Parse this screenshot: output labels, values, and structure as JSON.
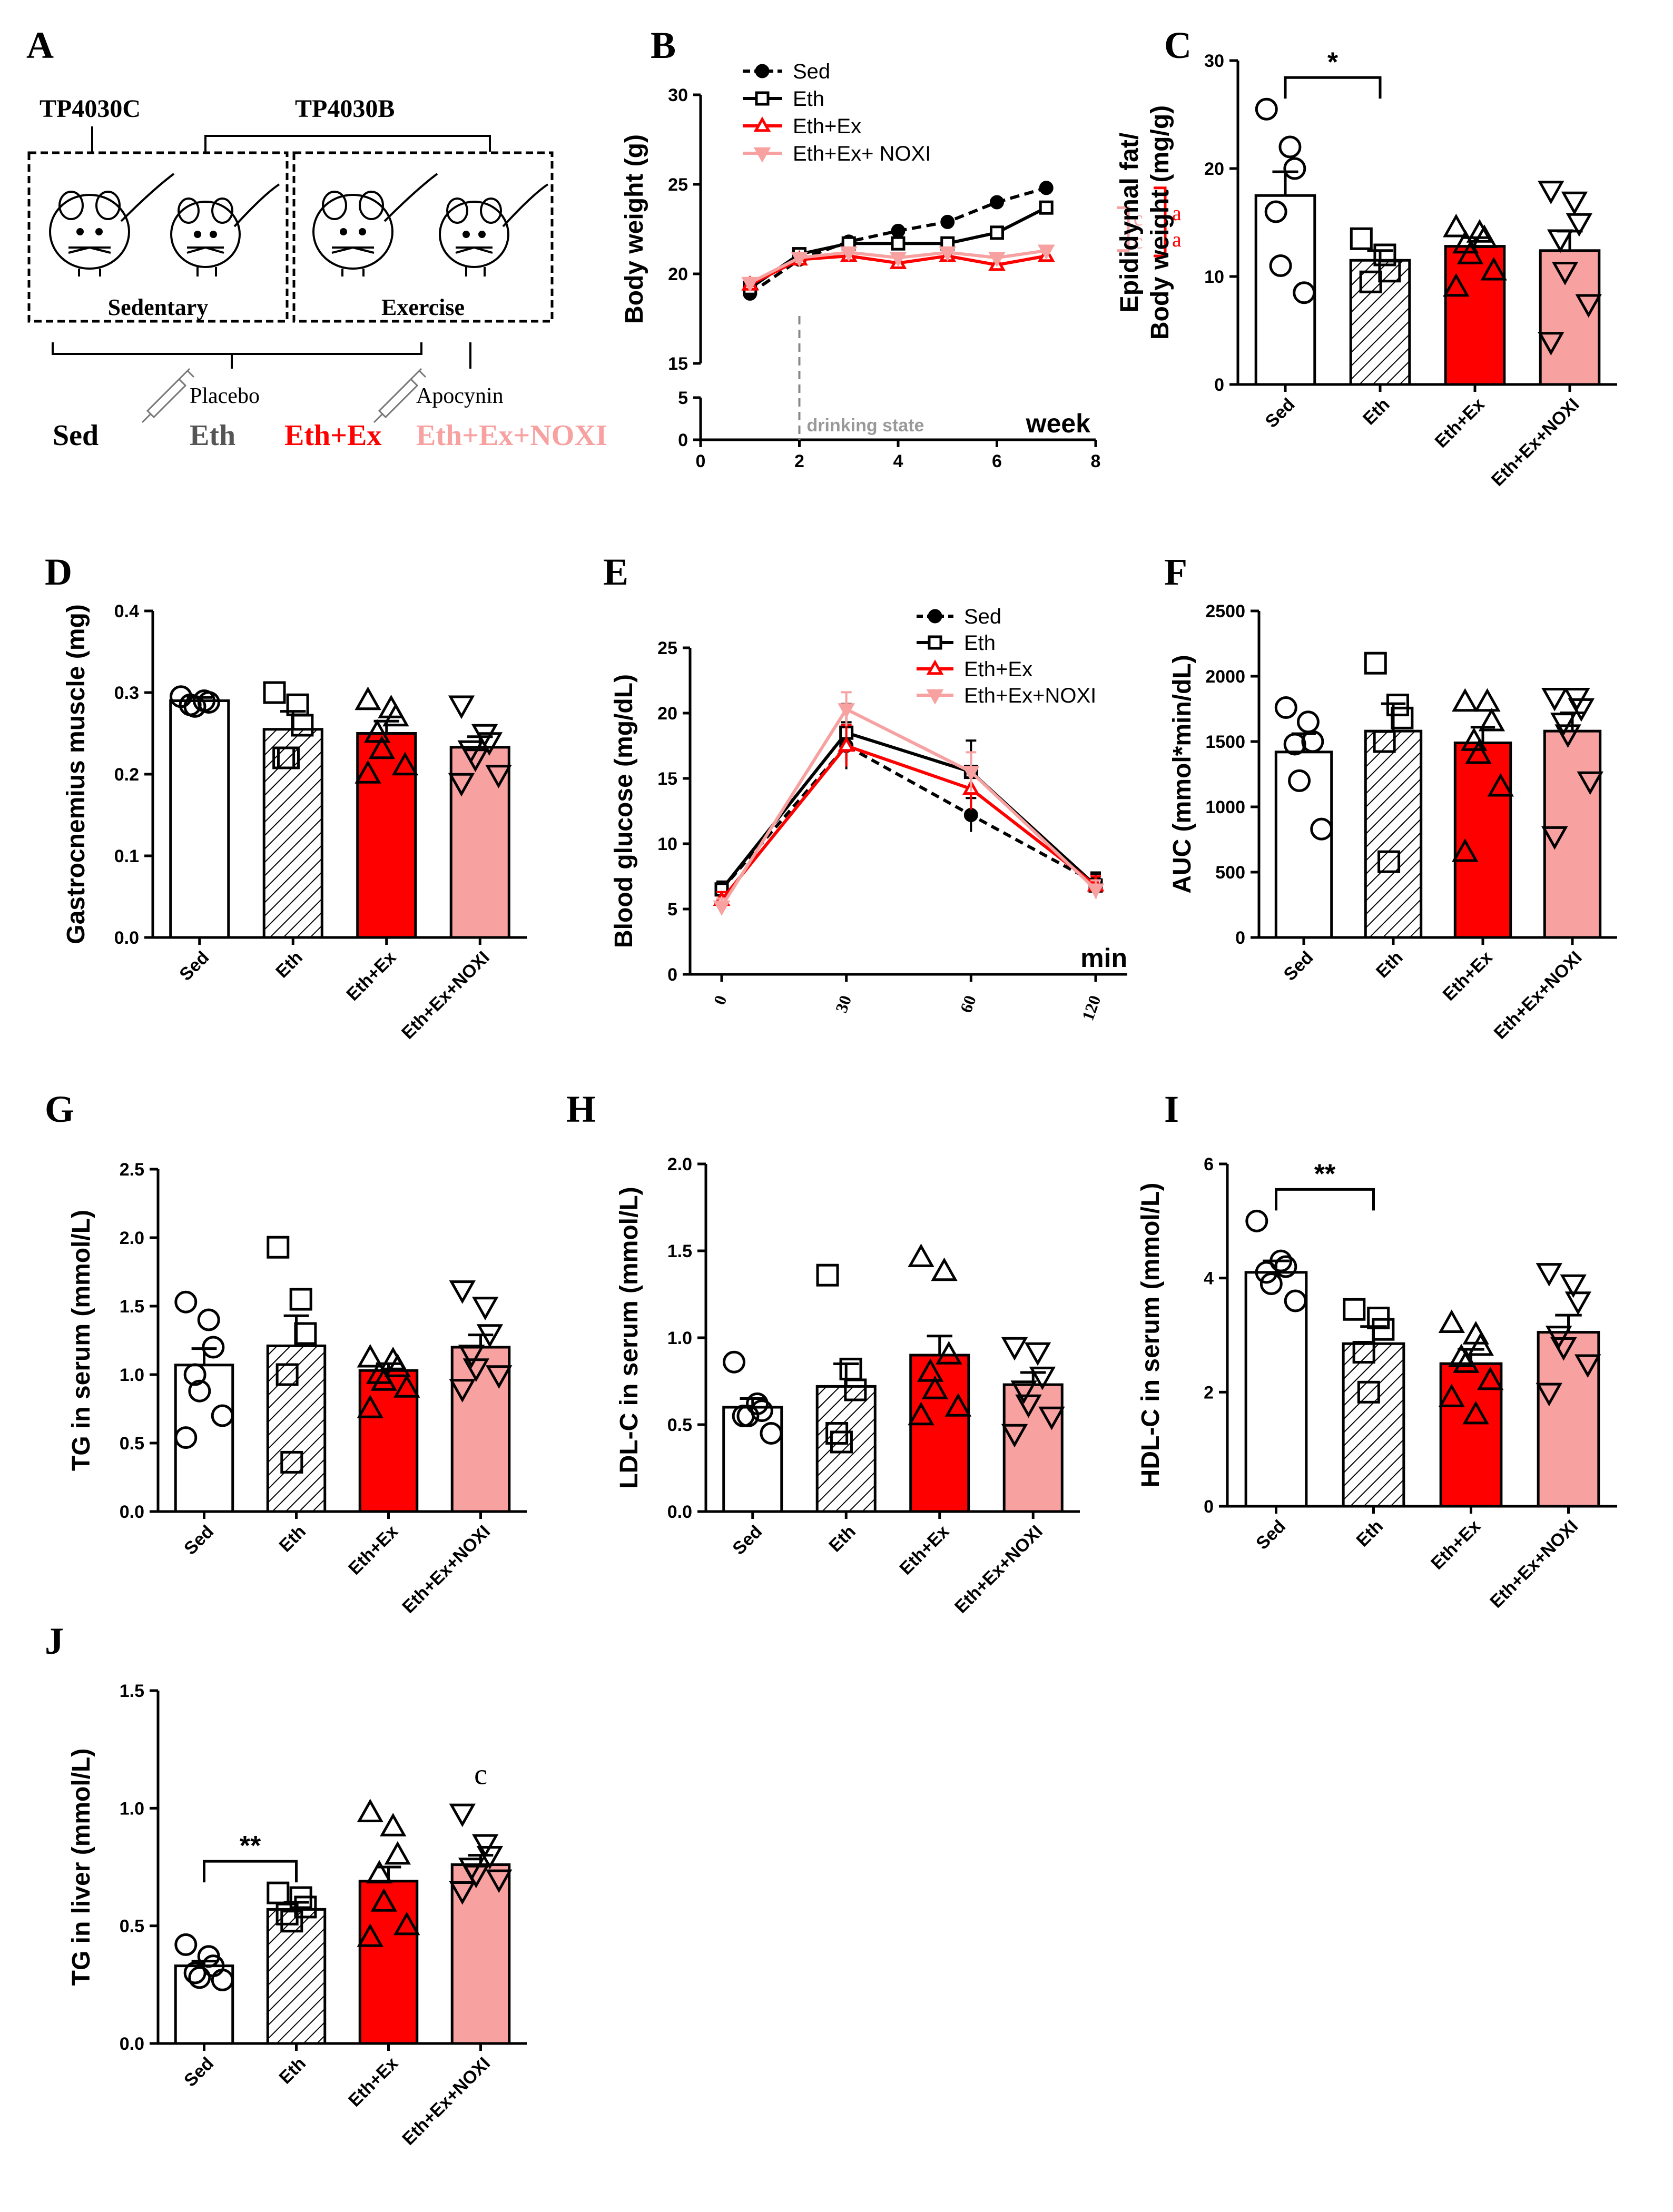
{
  "figure": {
    "panel_labels": [
      "A",
      "B",
      "C",
      "D",
      "E",
      "F",
      "G",
      "H",
      "I",
      "J"
    ],
    "colors": {
      "sed": "#ffffff",
      "eth": "#ffffff",
      "ethex": "#ff0000",
      "noxi": "#f7a1a1",
      "axis": "#000000",
      "legend_grey": "#555555"
    }
  },
  "schematic": {
    "strain_left": "TP4030C",
    "strain_right": "TP4030B",
    "box_left": "Sedentary",
    "box_right": "Exercise",
    "treatment_left": "Placebo",
    "treatment_right": "Apocynin",
    "groups": [
      {
        "label": "Sed",
        "color": "#000000"
      },
      {
        "label": "Eth",
        "color": "#555555"
      },
      {
        "label": "Eth+Ex",
        "color": "#ff0000"
      },
      {
        "label": "Eth+Ex+NOXI",
        "color": "#f7a1a1"
      }
    ],
    "icons": [
      "mouse-icon",
      "syringe-icon"
    ]
  },
  "chart_data": [
    {
      "id": "B",
      "type": "line",
      "ylabel": "Body weight (g)",
      "xlabel": "week",
      "x": [
        1,
        2,
        3,
        4,
        5,
        6,
        7
      ],
      "xlim": [
        0,
        8
      ],
      "xticks": [
        0,
        2,
        4,
        6,
        8
      ],
      "yticks_upper": [
        15,
        20,
        25,
        30
      ],
      "yticks_lower": [
        0,
        5
      ],
      "annotation": "drinking state",
      "significance": [
        "c",
        "c",
        "a",
        "a"
      ],
      "series": [
        {
          "name": "Sed",
          "values": [
            18.9,
            20.8,
            21.8,
            22.4,
            22.9,
            24.0,
            24.8
          ]
        },
        {
          "name": "Eth",
          "values": [
            19.2,
            21.1,
            21.7,
            21.7,
            21.7,
            22.3,
            23.7
          ]
        },
        {
          "name": "Eth+Ex",
          "values": [
            19.4,
            20.8,
            21.0,
            20.6,
            21.0,
            20.5,
            21.0
          ]
        },
        {
          "name": "Eth+Ex+ NOXI",
          "values": [
            19.5,
            20.9,
            21.2,
            20.9,
            21.2,
            20.9,
            21.3
          ]
        }
      ]
    },
    {
      "id": "C",
      "type": "bar",
      "ylabel": "Epididymal fat/\nBody weight (mg/g)",
      "categories": [
        "Sed",
        "Eth",
        "Eth+Ex",
        "Eth+Ex+NOXI"
      ],
      "values": [
        17.5,
        11.5,
        12.8,
        12.4
      ],
      "sem": [
        2.2,
        0.9,
        0.8,
        1.8
      ],
      "ylim": [
        0,
        30
      ],
      "yticks": [
        0,
        10,
        20,
        30
      ],
      "points": [
        [
          25.5,
          22,
          20,
          16,
          11,
          8.5
        ],
        [
          13.5,
          12,
          10.5,
          9.5
        ],
        [
          14.5,
          14,
          13.5,
          13,
          12,
          10.5,
          9
        ],
        [
          18,
          17,
          15,
          13.5,
          10.5,
          7.5,
          4
        ]
      ],
      "bracket": {
        "from": 0,
        "to": 1,
        "label": "*"
      }
    },
    {
      "id": "D",
      "type": "bar",
      "ylabel": "Gastrocnemius muscle (mg)",
      "categories": [
        "Sed",
        "Eth",
        "Eth+Ex",
        "Eth+Ex+NOXI"
      ],
      "values": [
        0.29,
        0.255,
        0.25,
        0.233
      ],
      "sem": [
        0.004,
        0.022,
        0.015,
        0.013
      ],
      "ylim": [
        0,
        0.4
      ],
      "yticks": [
        0.0,
        0.1,
        0.2,
        0.3,
        0.4
      ],
      "tick_decimals": 1,
      "points": [
        [
          0.295,
          0.29,
          0.288,
          0.285,
          0.283
        ],
        [
          0.3,
          0.285,
          0.26,
          0.22,
          0.22
        ],
        [
          0.29,
          0.28,
          0.27,
          0.25,
          0.23,
          0.21,
          0.2
        ],
        [
          0.285,
          0.25,
          0.24,
          0.23,
          0.22,
          0.2,
          0.19
        ]
      ]
    },
    {
      "id": "E",
      "type": "line",
      "ylabel": "Blood glucose (mg/dL)",
      "xlabel": "min",
      "categories": [
        "0",
        "30",
        "60",
        "120"
      ],
      "ylim": [
        0,
        25
      ],
      "yticks": [
        0,
        5,
        10,
        15,
        20,
        25
      ],
      "series": [
        {
          "name": "Sed",
          "values": [
            6.5,
            17.5,
            12.2,
            7.0
          ],
          "sem": [
            0.6,
            1.8,
            1.3,
            0.8
          ]
        },
        {
          "name": "Eth",
          "values": [
            6.5,
            18.5,
            15.5,
            6.8
          ],
          "sem": [
            0.6,
            2.2,
            2.4,
            0.9
          ]
        },
        {
          "name": "Eth+Ex",
          "values": [
            5.7,
            17.5,
            14.2,
            6.8
          ],
          "sem": [
            0.6,
            1.6,
            1.6,
            0.7
          ]
        },
        {
          "name": "Eth+Ex+NOXI",
          "values": [
            5.2,
            20.3,
            15.5,
            6.5
          ],
          "sem": [
            0.6,
            1.3,
            1.5,
            0.7
          ]
        }
      ]
    },
    {
      "id": "F",
      "type": "bar",
      "ylabel": "AUC (mmol*min/dL)",
      "categories": [
        "Sed",
        "Eth",
        "Eth+Ex",
        "Eth+Ex+NOXI"
      ],
      "values": [
        1420,
        1580,
        1490,
        1580
      ],
      "sem": [
        140,
        210,
        120,
        140
      ],
      "ylim": [
        0,
        2500
      ],
      "yticks": [
        0,
        500,
        1000,
        1500,
        2000,
        2500
      ],
      "points": [
        [
          1760,
          1650,
          1500,
          1480,
          1200,
          830
        ],
        [
          2100,
          1780,
          1680,
          1500,
          580
        ],
        [
          1800,
          1800,
          1650,
          1500,
          1400,
          1150,
          650
        ],
        [
          1840,
          1840,
          1760,
          1650,
          1560,
          1200,
          780
        ]
      ]
    },
    {
      "id": "G",
      "type": "bar",
      "ylabel": "TG in serum (mmol/L)",
      "categories": [
        "Sed",
        "Eth",
        "Eth+Ex",
        "Eth+Ex+NOXI"
      ],
      "values": [
        1.07,
        1.21,
        1.03,
        1.2
      ],
      "sem": [
        0.12,
        0.22,
        0.05,
        0.09
      ],
      "ylim": [
        0,
        2.5
      ],
      "yticks": [
        0.0,
        0.5,
        1.0,
        1.5,
        2.0,
        2.5
      ],
      "tick_decimals": 1,
      "points": [
        [
          1.53,
          1.4,
          1.2,
          1.0,
          0.88,
          0.7,
          0.54
        ],
        [
          1.93,
          1.55,
          1.3,
          1.0,
          0.36
        ],
        [
          1.12,
          1.1,
          1.05,
          1.0,
          0.95,
          0.9,
          0.75
        ],
        [
          1.62,
          1.5,
          1.3,
          1.15,
          1.05,
          1.0,
          0.9
        ]
      ]
    },
    {
      "id": "H",
      "type": "bar",
      "ylabel": "LDL-C in serum (mmol/L)",
      "categories": [
        "Sed",
        "Eth",
        "Eth+Ex",
        "Eth+Ex+NOXI"
      ],
      "values": [
        0.6,
        0.72,
        0.9,
        0.73
      ],
      "sem": [
        0.05,
        0.13,
        0.11,
        0.07
      ],
      "ylim": [
        0,
        2.0
      ],
      "yticks": [
        0.0,
        0.5,
        1.0,
        1.5,
        2.0
      ],
      "tick_decimals": 1,
      "points": [
        [
          0.86,
          0.62,
          0.58,
          0.55,
          0.55,
          0.45
        ],
        [
          1.36,
          0.82,
          0.7,
          0.45,
          0.4
        ],
        [
          1.46,
          1.38,
          0.9,
          0.8,
          0.7,
          0.6,
          0.55
        ],
        [
          0.95,
          0.92,
          0.78,
          0.7,
          0.62,
          0.55,
          0.45
        ]
      ]
    },
    {
      "id": "I",
      "type": "bar",
      "ylabel": "HDL-C in serum (mmol/L)",
      "categories": [
        "Sed",
        "Eth",
        "Eth+Ex",
        "Eth+Ex+NOXI"
      ],
      "values": [
        4.1,
        2.85,
        2.5,
        3.05
      ],
      "sem": [
        0.2,
        0.3,
        0.25,
        0.3
      ],
      "ylim": [
        0,
        6
      ],
      "yticks": [
        0,
        2,
        4,
        6
      ],
      "points": [
        [
          5.0,
          4.3,
          4.2,
          4.1,
          3.9,
          3.6
        ],
        [
          3.45,
          3.3,
          3.1,
          2.7,
          2.0
        ],
        [
          3.2,
          3.0,
          2.8,
          2.6,
          2.5,
          2.2,
          1.9,
          1.6
        ],
        [
          4.1,
          3.9,
          3.6,
          3.0,
          2.8,
          2.5,
          2.0
        ]
      ],
      "bracket": {
        "from": 0,
        "to": 1,
        "label": "**"
      }
    },
    {
      "id": "J",
      "type": "bar",
      "ylabel": "TG in liver (mmol/L)",
      "categories": [
        "Sed",
        "Eth",
        "Eth+Ex",
        "Eth+Ex+NOXI"
      ],
      "values": [
        0.33,
        0.57,
        0.69,
        0.76
      ],
      "sem": [
        0.02,
        0.03,
        0.06,
        0.04
      ],
      "ylim": [
        0,
        1.5
      ],
      "yticks": [
        0.0,
        0.5,
        1.0,
        1.5
      ],
      "tick_decimals": 1,
      "points": [
        [
          0.42,
          0.37,
          0.33,
          0.3,
          0.28,
          0.27
        ],
        [
          0.64,
          0.62,
          0.58,
          0.55,
          0.52
        ],
        [
          0.98,
          0.92,
          0.8,
          0.72,
          0.6,
          0.5,
          0.45
        ],
        [
          0.98,
          0.85,
          0.8,
          0.75,
          0.72,
          0.7,
          0.65
        ]
      ],
      "bracket": {
        "from": 0,
        "to": 1,
        "label": "**"
      },
      "significance": "c"
    }
  ]
}
